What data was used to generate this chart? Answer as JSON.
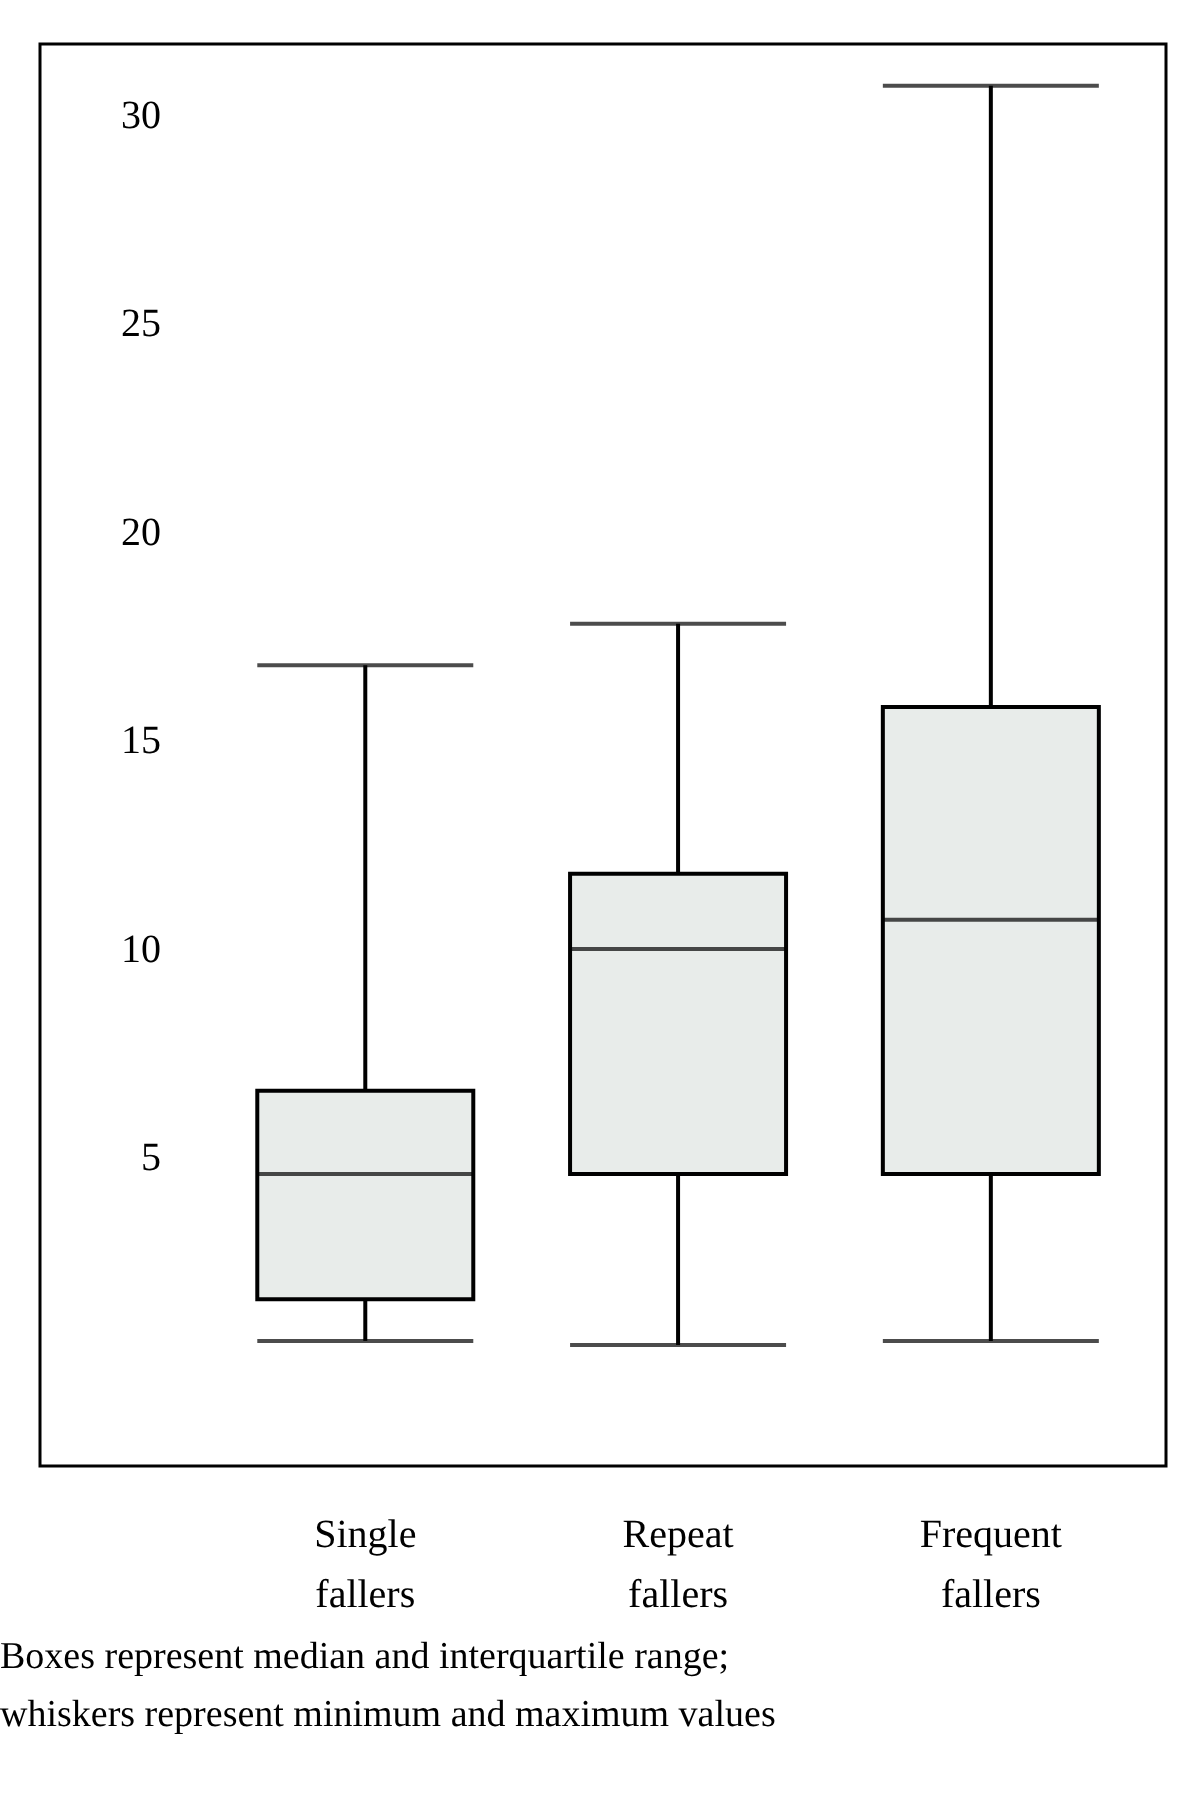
{
  "chart_data": {
    "type": "box",
    "categories": [
      "Single fallers",
      "Repeat fallers",
      "Frequent fallers"
    ],
    "boxes": [
      {
        "low": 0.6,
        "q1": 1.6,
        "median": 4.6,
        "q3": 6.6,
        "high": 16.8
      },
      {
        "low": 0.5,
        "q1": 4.6,
        "median": 10.0,
        "q3": 11.8,
        "high": 17.8
      },
      {
        "low": 0.6,
        "q1": 4.6,
        "median": 10.7,
        "q3": 15.8,
        "high": 30.7
      }
    ],
    "color": "#e8ecea",
    "ylim": [
      -2.4,
      31.7
    ],
    "yticks": [
      5,
      10,
      15,
      20,
      25,
      30
    ],
    "grid": false,
    "annotations": [
      "Boxes represent median and interquartile range;",
      "whiskers represent minimum and maximum values"
    ]
  }
}
